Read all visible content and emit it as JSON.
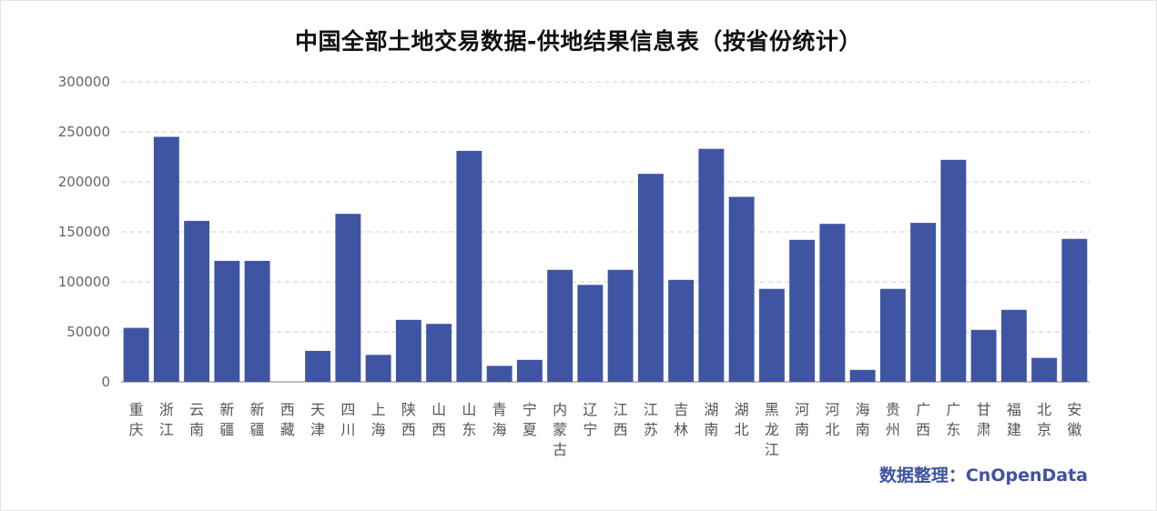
{
  "chart_data": {
    "type": "bar",
    "title": "中国全部土地交易数据-供地结果信息表（按省份统计）",
    "xlabel": "",
    "ylabel": "",
    "ylim": [
      0,
      300000
    ],
    "yticks": [
      "0",
      "50000",
      "100000",
      "150000",
      "200000",
      "250000",
      "300000"
    ],
    "grid": true,
    "bar_color": "#3f55a3",
    "categories": [
      "重庆",
      "浙江",
      "云南",
      "新疆",
      "新疆",
      "西藏",
      "天津",
      "四川",
      "上海",
      "陕西",
      "山西",
      "山东",
      "青海",
      "宁夏",
      "内蒙古",
      "辽宁",
      "江西",
      "江苏",
      "吉林",
      "湖南",
      "湖北",
      "黑龙江",
      "河南",
      "河北",
      "海南",
      "贵州",
      "广西",
      "广东",
      "甘肃",
      "福建",
      "北京",
      "安徽"
    ],
    "values": [
      54000,
      245000,
      161000,
      121000,
      121000,
      0,
      31000,
      168000,
      27000,
      62000,
      58000,
      231000,
      16000,
      22000,
      112000,
      97000,
      112000,
      208000,
      102000,
      233000,
      185000,
      93000,
      142000,
      158000,
      12000,
      93000,
      159000,
      222000,
      52000,
      72000,
      24000,
      143000
    ]
  },
  "source_label": "数据整理：CnOpenData"
}
